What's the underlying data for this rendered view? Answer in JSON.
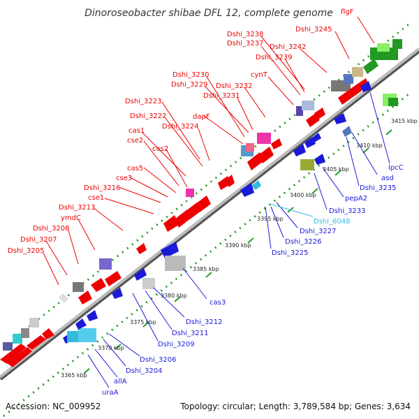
{
  "title": "Dinoroseobacter shibae DFL 12, complete genome",
  "footer": {
    "accession": "Accession: NC_009952",
    "summary": "Topology: circular; Length: 3,789,584 bp; Genes: 3,634"
  },
  "colors": {
    "forward_gene": "#ee0000",
    "reverse_gene": "#1a1ad8",
    "highlight_gene": "#33bbdd",
    "backbone": "#8c8c8c",
    "tick": "#2a9a2a"
  },
  "scale_labels": [
    "3365 kbp",
    "3370 kbp",
    "3375 kbp",
    "3380 kbp",
    "3385 kbp",
    "3390 kbp",
    "3395 kbp",
    "3400 kbp",
    "3405 kbp",
    "3410 kbp",
    "3415 kbp"
  ],
  "forward_labels": [
    "Dshi_3205",
    "Dshi_3207",
    "Dshi_3208",
    "ymdC",
    "Dshi_3213",
    "cse1",
    "Dshi_3216",
    "cse3",
    "cas5",
    "cas2",
    "cse2",
    "cas1",
    "Dshi_3224",
    "Dshi_3222",
    "Dshi_3223",
    "dapF",
    "Dshi_3231",
    "Dshi_3229",
    "Dshi_3230",
    "Dshi_3232",
    "cynT",
    "Dshi_3239",
    "Dshi_3237",
    "Dshi_3238",
    "Dshi_3242",
    "Dshi_3245",
    "flgF"
  ],
  "reverse_labels": [
    "uraA",
    "allA",
    "Dshi_3204",
    "Dshi_3206",
    "Dshi_3209",
    "Dshi_3211",
    "Dshi_3212",
    "cas3",
    "Dshi_3225",
    "Dshi_3226",
    "Dshi_3227",
    "Dshi_6048",
    "Dshi_3233",
    "pepA2",
    "Dshi_3235",
    "asd",
    "lpcC"
  ]
}
